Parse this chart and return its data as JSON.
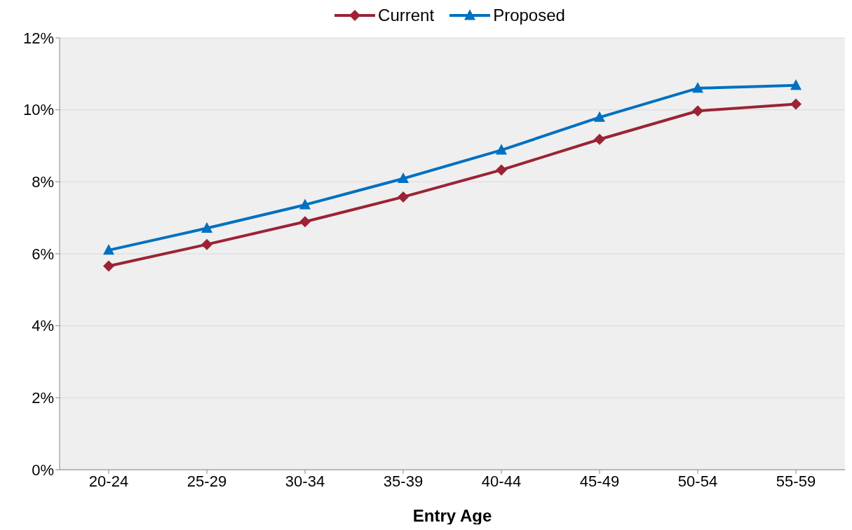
{
  "chart_data": {
    "type": "line",
    "xlabel": "Entry Age",
    "categories": [
      "20-24",
      "25-29",
      "30-34",
      "35-39",
      "40-44",
      "45-49",
      "50-54",
      "55-59"
    ],
    "series": [
      {
        "name": "Current",
        "color": "#9b2335",
        "marker": "diamond",
        "values": [
          5.66,
          6.26,
          6.89,
          7.58,
          8.33,
          9.18,
          9.97,
          10.16
        ]
      },
      {
        "name": "Proposed",
        "color": "#0070c0",
        "marker": "triangle",
        "values": [
          6.1,
          6.71,
          7.36,
          8.09,
          8.88,
          9.79,
          10.6,
          10.68
        ]
      }
    ],
    "ylim": [
      0,
      12
    ],
    "yticks": [
      {
        "value": 0,
        "label": "0%"
      },
      {
        "value": 2,
        "label": "2%"
      },
      {
        "value": 4,
        "label": "4%"
      },
      {
        "value": 6,
        "label": "6%"
      },
      {
        "value": 8,
        "label": "8%"
      },
      {
        "value": 10,
        "label": "10%"
      },
      {
        "value": 12,
        "label": "12%"
      }
    ],
    "grid": "y",
    "legend": "top",
    "line_style": "solid"
  }
}
